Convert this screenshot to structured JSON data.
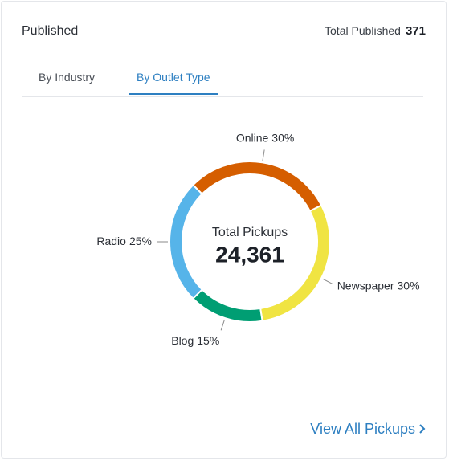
{
  "header": {
    "title": "Published",
    "total_label": "Total Published",
    "total_value": 371
  },
  "tabs": [
    "By Industry",
    "By Outlet Type"
  ],
  "chart_data": {
    "type": "donut",
    "center_label": "Total Pickups",
    "center_value": "24,361",
    "categories": [
      "Online",
      "Newspaper",
      "Blog",
      "Radio"
    ],
    "values": [
      30,
      30,
      15,
      25
    ],
    "value_labels": [
      "30%",
      "30%",
      "15%",
      "25%"
    ],
    "colors": [
      "#d55e00",
      "#f0e442",
      "#009e73",
      "#56b4e9"
    ]
  },
  "link": "View All Pickups"
}
